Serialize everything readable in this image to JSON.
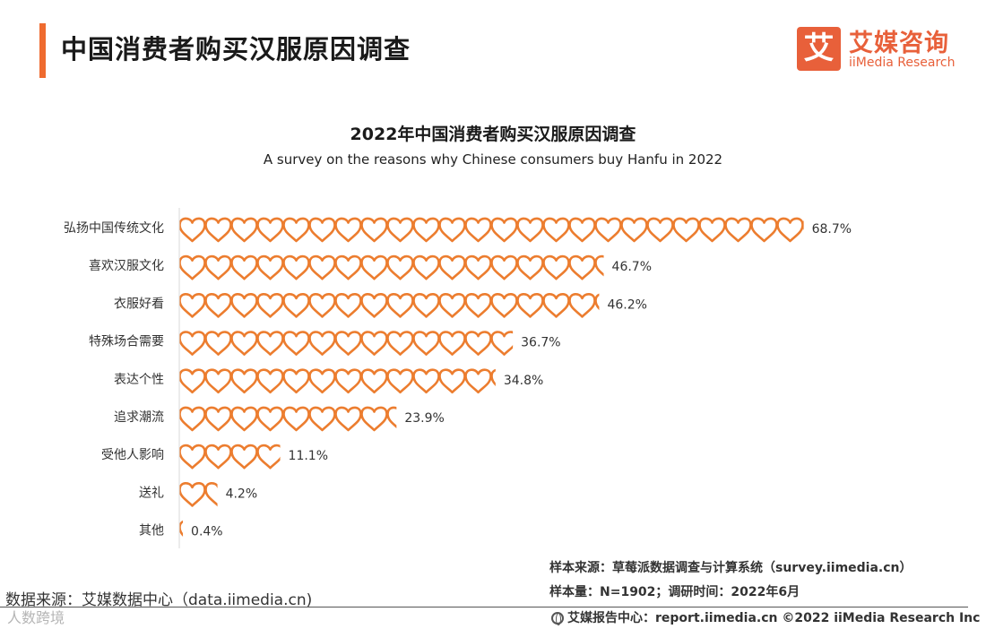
{
  "header": {
    "title": "中国消费者购买汉服原因调查",
    "logo_mark": "艾",
    "logo_cn": "艾媒咨询",
    "logo_en": "iiMedia Research",
    "accent_color": "#ef6b2f"
  },
  "chart_data": {
    "type": "bar",
    "title": "2022年中国消费者购买汉服原因调查",
    "subtitle": "A survey on the reasons why Chinese consumers buy Hanfu in 2022",
    "categories": [
      "弘扬中国传统文化",
      "喜欢汉服文化",
      "衣服好看",
      "特殊场合需要",
      "表达个性",
      "追求潮流",
      "受他人影响",
      "送礼",
      "其他"
    ],
    "values": [
      68.7,
      46.7,
      46.2,
      36.7,
      34.8,
      23.9,
      11.1,
      4.2,
      0.4
    ],
    "value_labels": [
      "68.7%",
      "46.7%",
      "46.2%",
      "36.7%",
      "34.8%",
      "23.9%",
      "11.1%",
      "4.2%",
      "0.4%"
    ],
    "unit": "%",
    "mark": "heart-icon",
    "mark_color": "#ec7d2f",
    "xlim": [
      0,
      70
    ]
  },
  "footer": {
    "sample_source": "样本来源：草莓派数据调查与计算系统（survey.iimedia.cn）",
    "sample_size": "样本量：N=1902；调研时间：2022年6月",
    "data_source": "数据来源：艾媒数据中心（data.iimedia.cn)",
    "watermark": "人数跨境",
    "report_center": "艾媒报告中心：report.iimedia.cn   ©2022  iiMedia Research  Inc"
  }
}
